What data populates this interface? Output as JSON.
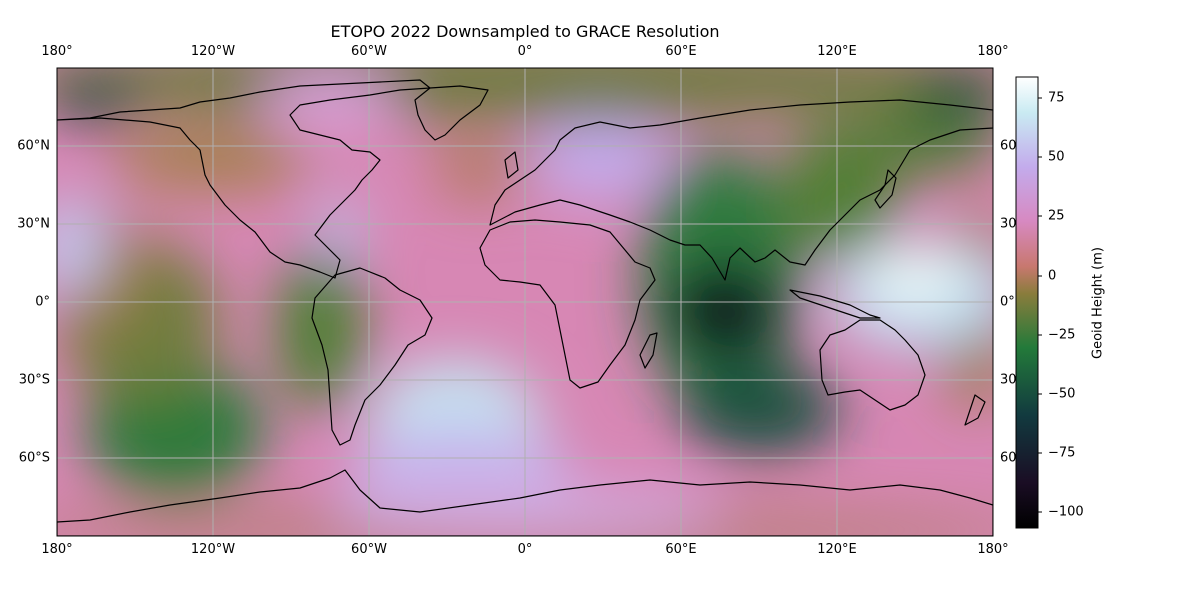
{
  "chart_data": {
    "type": "heatmap",
    "title": "ETOPO 2022 Downsampled to GRACE Resolution",
    "projection": "PlateCarree",
    "x_ticks": [
      "180°",
      "120°W",
      "60°W",
      "0°",
      "60°E",
      "120°E",
      "180°"
    ],
    "x_tick_values": [
      -180,
      -120,
      -60,
      0,
      60,
      120,
      180
    ],
    "y_ticks_left": [
      "60°N",
      "30°N",
      "0°",
      "30°S",
      "60°S"
    ],
    "y_ticks_right": [
      "60",
      "30",
      "0°",
      "30",
      "60"
    ],
    "y_tick_values": [
      60,
      30,
      0,
      -30,
      -60
    ],
    "xlim": [
      -180,
      180
    ],
    "ylim": [
      -90,
      90
    ],
    "grid": true,
    "colormap": "cubehelix",
    "colorbar": {
      "label": "Geoid Height (m)",
      "ticks": [
        "75",
        "50",
        "25",
        "0",
        "−25",
        "−50",
        "−75",
        "−100"
      ],
      "tick_values": [
        75,
        50,
        25,
        0,
        -25,
        -50,
        -75,
        -100
      ],
      "range": [
        -107,
        85
      ]
    },
    "anomalies": [
      {
        "lon": 78,
        "lat": -5,
        "value": -105
      },
      {
        "lon": 150,
        "lat": -5,
        "value": 80
      },
      {
        "lon": -30,
        "lat": -50,
        "value": 55
      },
      {
        "lon": 35,
        "lat": 60,
        "value": 50
      },
      {
        "lon": -170,
        "lat": 10,
        "value": 35
      },
      {
        "lon": -110,
        "lat": -60,
        "value": -55
      },
      {
        "lon": -110,
        "lat": -10,
        "value": -35
      },
      {
        "lon": -170,
        "lat": 80,
        "value": -75
      },
      {
        "lon": 165,
        "lat": 80,
        "value": -75
      },
      {
        "lon": 100,
        "lat": -45,
        "value": -60
      },
      {
        "lon": -60,
        "lat": 70,
        "value": 35
      }
    ]
  }
}
